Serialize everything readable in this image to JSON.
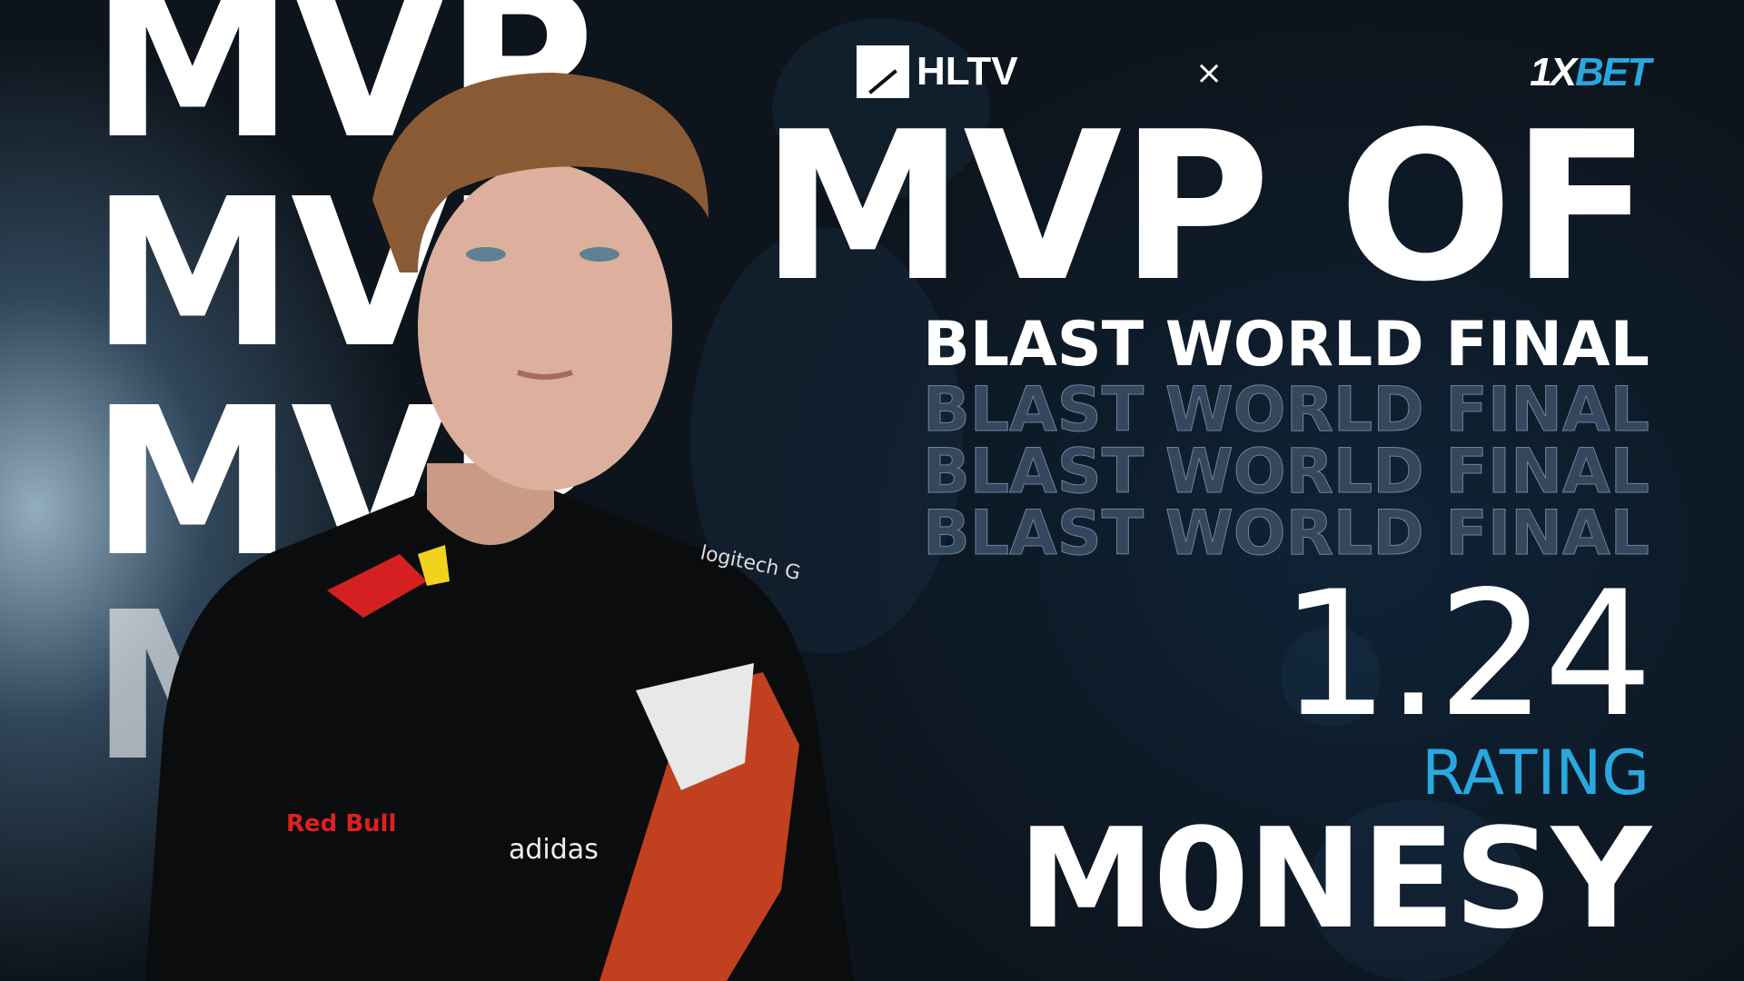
{
  "background_mvp": [
    "MVP",
    "MVP",
    "MVP",
    "MVP"
  ],
  "logos": {
    "hltv": "HLTV",
    "separator": "×",
    "sponsor_prefix": "1X",
    "sponsor_suffix": "BET"
  },
  "title": {
    "line1": "MVP OF",
    "event": "BLAST WORLD FINAL",
    "event_echo": [
      "BLAST WORLD FINAL",
      "BLAST WORLD FINAL",
      "BLAST WORLD FINAL"
    ]
  },
  "stat": {
    "value": "1.24",
    "label": "RATING"
  },
  "player": {
    "name": "M0NESY",
    "jersey_text": [
      "Red Bull",
      "logitech G",
      "adidas"
    ]
  },
  "colors": {
    "accent": "#29a8e0",
    "background": "#0f151c",
    "text": "#ffffff"
  }
}
